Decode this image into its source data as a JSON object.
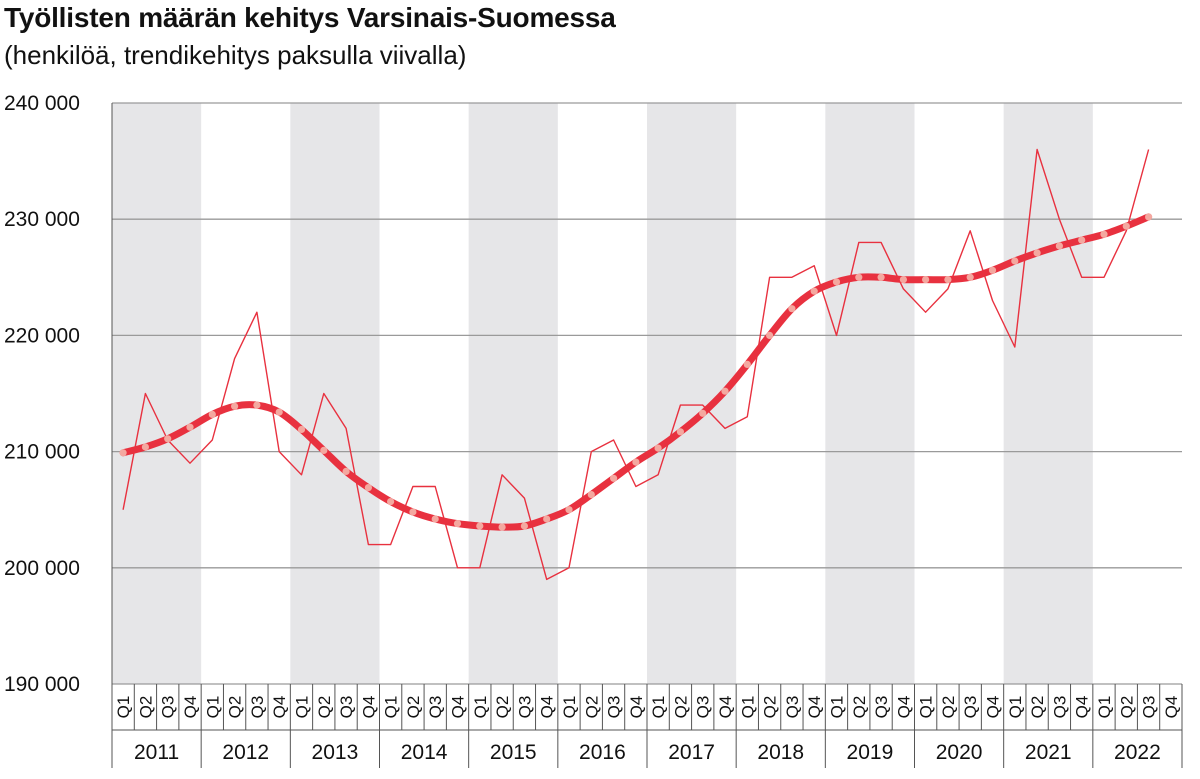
{
  "chart_data": {
    "type": "line",
    "title": "Työllisten määrän kehitys Varsinais-Suomessa",
    "subtitle": "(henkilöä, trendikehitys paksulla viivalla)",
    "ylim": [
      190000,
      240000
    ],
    "y_ticks": [
      190000,
      200000,
      210000,
      220000,
      230000,
      240000
    ],
    "y_tick_labels": [
      "190 000",
      "200 000",
      "210 000",
      "220 000",
      "230 000",
      "240 000"
    ],
    "years": [
      "2011",
      "2012",
      "2013",
      "2014",
      "2015",
      "2016",
      "2017",
      "2018",
      "2019",
      "2020",
      "2021",
      "2022"
    ],
    "quarters": [
      "Q1",
      "Q2",
      "Q3",
      "Q4"
    ],
    "grid": true,
    "shaded_alternate_years": true,
    "series": [
      {
        "role": "original",
        "color": "#e8313f",
        "values": [
          205000,
          215000,
          211000,
          209000,
          211000,
          218000,
          222000,
          210000,
          208000,
          215000,
          212000,
          202000,
          202000,
          207000,
          207000,
          200000,
          200000,
          208000,
          206000,
          199000,
          200000,
          210000,
          211000,
          207000,
          208000,
          214000,
          214000,
          212000,
          213000,
          225000,
          225000,
          226000,
          220000,
          228000,
          228000,
          224000,
          222000,
          224000,
          229000,
          223000,
          219000,
          236000,
          230000,
          225000,
          225000,
          229000,
          236000
        ]
      },
      {
        "role": "trend",
        "color": "#e8313f",
        "marker_color": "#f4a8a0",
        "values": [
          209900,
          210400,
          211100,
          212100,
          213200,
          213900,
          214000,
          213400,
          211900,
          210100,
          208300,
          206900,
          205700,
          204800,
          204200,
          203800,
          203600,
          203500,
          203600,
          204200,
          205000,
          206300,
          207700,
          209100,
          210300,
          211700,
          213300,
          215200,
          217500,
          220000,
          222300,
          223800,
          224600,
          225000,
          225000,
          224800,
          224800,
          224800,
          225000,
          225600,
          226400,
          227100,
          227700,
          228200,
          228700,
          229400,
          230200
        ]
      }
    ]
  }
}
